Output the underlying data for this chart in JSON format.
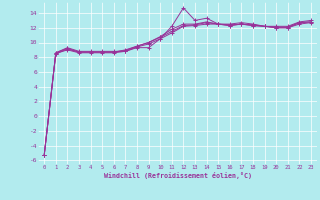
{
  "xlabel": "Windchill (Refroidissement éolien,°C)",
  "background_color": "#b2ebee",
  "line_color": "#993399",
  "xlim": [
    -0.5,
    23.5
  ],
  "ylim": [
    -6.5,
    15.5
  ],
  "xticks": [
    0,
    1,
    2,
    3,
    4,
    5,
    6,
    7,
    8,
    9,
    10,
    11,
    12,
    13,
    14,
    15,
    16,
    17,
    18,
    19,
    20,
    21,
    22,
    23
  ],
  "yticks": [
    -6,
    -4,
    -2,
    0,
    2,
    4,
    6,
    8,
    10,
    12,
    14
  ],
  "series": [
    [
      0.0,
      1.0,
      2.0,
      3.0,
      4.0,
      5.0,
      6.0,
      7.0,
      8.0,
      9.0,
      10.0,
      11.0,
      12.0,
      13.0,
      14.0,
      15.0,
      16.0,
      17.0,
      18.0,
      19.0,
      20.0,
      21.0,
      22.0,
      23.0
    ],
    [
      -5.3,
      8.6,
      9.3,
      8.8,
      8.8,
      8.8,
      8.8,
      8.8,
      9.3,
      9.3,
      10.5,
      12.2,
      14.7,
      13.0,
      13.3,
      12.5,
      12.5,
      12.7,
      12.5,
      12.2,
      12.2,
      12.2,
      12.8,
      13.0
    ],
    [
      -5.3,
      8.6,
      9.2,
      8.7,
      8.7,
      8.7,
      8.7,
      9.0,
      9.5,
      10.0,
      10.8,
      11.8,
      12.5,
      12.5,
      12.8,
      12.5,
      12.4,
      12.5,
      12.4,
      12.2,
      12.1,
      12.1,
      12.7,
      12.8
    ],
    [
      -5.3,
      8.5,
      9.1,
      8.7,
      8.7,
      8.7,
      8.7,
      8.9,
      9.5,
      10.0,
      10.7,
      11.5,
      12.3,
      12.4,
      12.7,
      12.5,
      12.3,
      12.5,
      12.3,
      12.2,
      12.0,
      12.0,
      12.7,
      12.8
    ],
    [
      -5.3,
      8.5,
      9.0,
      8.6,
      8.6,
      8.6,
      8.6,
      8.8,
      9.4,
      9.8,
      10.5,
      11.3,
      12.2,
      12.3,
      12.5,
      12.5,
      12.3,
      12.5,
      12.3,
      12.2,
      12.0,
      12.0,
      12.5,
      12.7
    ]
  ]
}
